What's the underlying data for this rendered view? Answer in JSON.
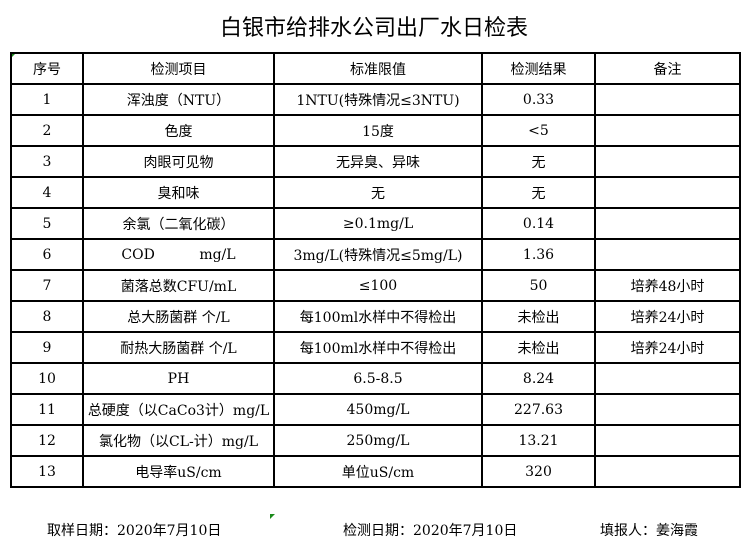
{
  "title": "白银市给排水公司出厂水日检表",
  "headers": [
    "序号",
    "检测项目",
    "标准限值",
    "检测结果",
    "备注"
  ],
  "rows": [
    [
      "1",
      "浑浊度（NTU）",
      "1NTU(特殊情况≤3NTU)",
      "0.33",
      ""
    ],
    [
      "2",
      "色度",
      "15度",
      "<5",
      ""
    ],
    [
      "3",
      "肉眼可见物",
      "无异臭、异味",
      "无",
      ""
    ],
    [
      "4",
      "臭和味",
      "无",
      "无",
      ""
    ],
    [
      "5",
      "余氯（二氧化碳）",
      "≥0.1mg/L",
      "0.14",
      ""
    ],
    [
      "6",
      "COD          mg/L",
      "3mg/L(特殊情况≤5mg/L)",
      "1.36",
      ""
    ],
    [
      "7",
      "菌落总数CFU/mL",
      "≤100",
      "50",
      "培养48小时"
    ],
    [
      "8",
      "总大肠菌群 个/L",
      "每100ml水样中不得检出",
      "未检出",
      "培养24小时"
    ],
    [
      "9",
      "耐热大肠菌群 个/L",
      "每100ml水样中不得检出",
      "未检出",
      "培养24小时"
    ],
    [
      "10",
      "PH",
      "6.5-8.5",
      "8.24",
      ""
    ],
    [
      "11",
      "总硬度（以CaCo3计）mg/L",
      "450mg/L",
      "227.63",
      ""
    ],
    [
      "12",
      "氯化物（以CL-计）mg/L",
      "250mg/L",
      "13.21",
      ""
    ],
    [
      "13",
      "电导率uS/cm",
      "单位uS/cm",
      "320",
      ""
    ]
  ],
  "footer": {
    "sampling_date": "取样日期：2020年7月10日",
    "test_date": "检测日期：2020年7月10日",
    "reporter": "填报人：姜海霞"
  }
}
